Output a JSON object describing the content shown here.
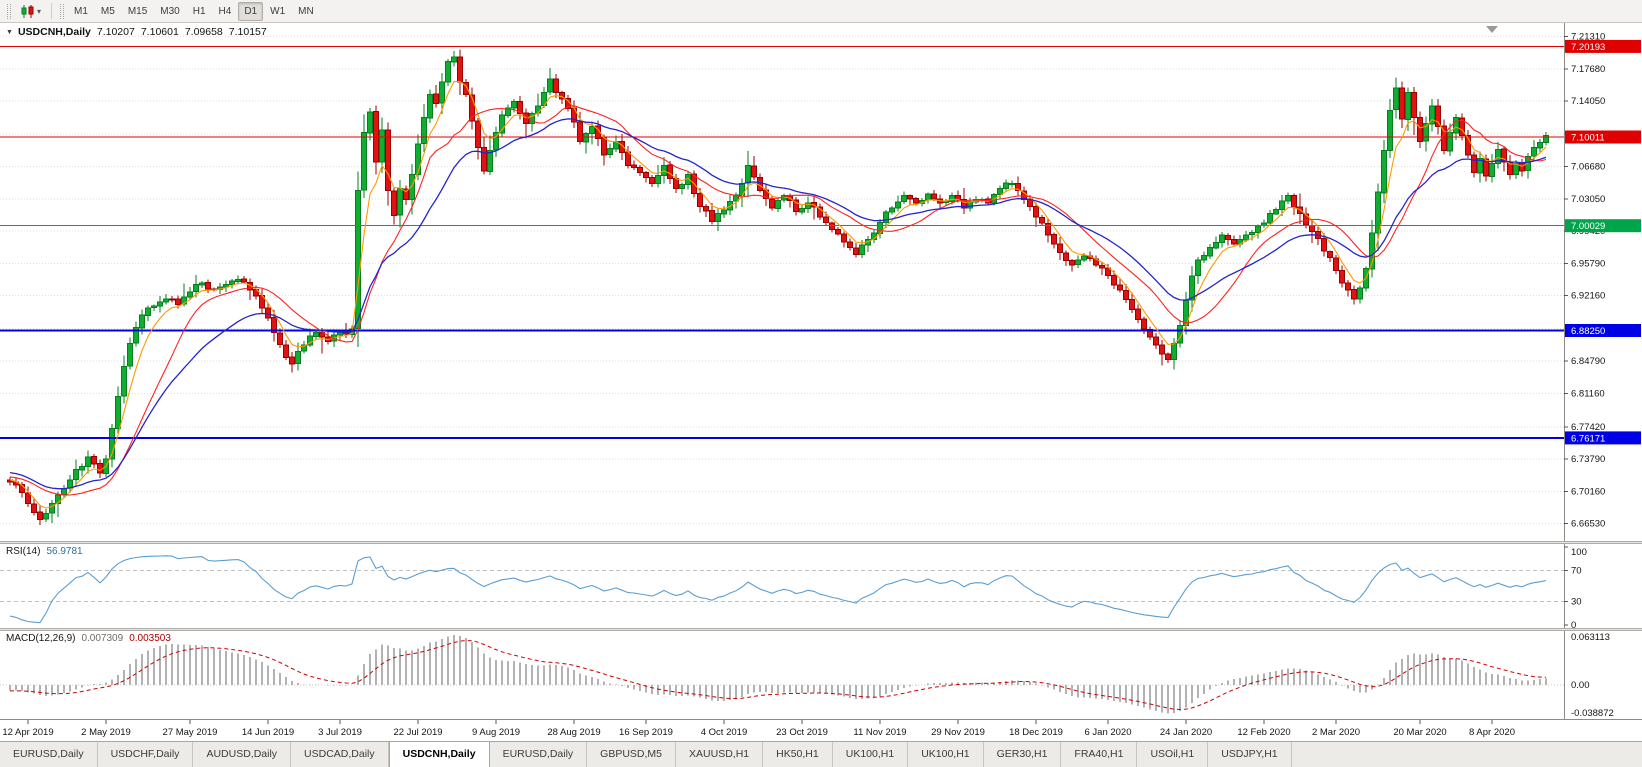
{
  "toolbar": {
    "periods": [
      "M1",
      "M5",
      "M15",
      "M30",
      "H1",
      "H4",
      "D1",
      "W1",
      "MN"
    ],
    "active_period": "D1"
  },
  "chart": {
    "title": {
      "symbol": "USDCNH,Daily",
      "open": "7.10207",
      "high": "7.10601",
      "low": "7.09658",
      "close": "7.10157"
    },
    "colors": {
      "up_stroke": "#067f1e",
      "up_fill": "#0fae33",
      "down_stroke": "#9b0000",
      "down_fill": "#e31212",
      "ma_fast": "#ff9900",
      "ma_mid": "#ff2222",
      "ma_slow": "#2525cc",
      "grid": "#dedede",
      "axis_text": "#141414"
    }
  },
  "chart_data": {
    "type": "candlestick",
    "symbol": "USDCNH",
    "timeframe": "Daily",
    "price_range": {
      "min": 6.648,
      "max": 7.226
    },
    "y_ticks": [
      {
        "v": 7.2131,
        "t": "7.21310"
      },
      {
        "v": 7.1768,
        "t": "7.17680"
      },
      {
        "v": 7.1405,
        "t": "7.14050"
      },
      {
        "v": 7.0668,
        "t": "7.06680"
      },
      {
        "v": 7.0305,
        "t": "7.03050"
      },
      {
        "v": 6.9942,
        "t": "6.99420"
      },
      {
        "v": 6.9579,
        "t": "6.95790"
      },
      {
        "v": 6.9216,
        "t": "6.92160"
      },
      {
        "v": 6.8479,
        "t": "6.84790"
      },
      {
        "v": 6.8116,
        "t": "6.81160"
      },
      {
        "v": 6.7742,
        "t": "6.77420"
      },
      {
        "v": 6.7379,
        "t": "6.73790"
      },
      {
        "v": 6.7016,
        "t": "6.70160"
      },
      {
        "v": 6.6653,
        "t": "6.66530"
      }
    ],
    "y_grid_extra": [
      7.10365,
      6.88475
    ],
    "x_ticks": [
      {
        "i": 3,
        "label": "12 Apr 2019"
      },
      {
        "i": 16,
        "label": "2 May 2019"
      },
      {
        "i": 30,
        "label": "27 May 2019"
      },
      {
        "i": 43,
        "label": "14 Jun 2019"
      },
      {
        "i": 55,
        "label": "3 Jul 2019"
      },
      {
        "i": 68,
        "label": "22 Jul 2019"
      },
      {
        "i": 81,
        "label": "9 Aug 2019"
      },
      {
        "i": 94,
        "label": "28 Aug 2019"
      },
      {
        "i": 106,
        "label": "16 Sep 2019"
      },
      {
        "i": 119,
        "label": "4 Oct 2019"
      },
      {
        "i": 132,
        "label": "23 Oct 2019"
      },
      {
        "i": 145,
        "label": "11 Nov 2019"
      },
      {
        "i": 158,
        "label": "29 Nov 2019"
      },
      {
        "i": 171,
        "label": "18 Dec 2019"
      },
      {
        "i": 183,
        "label": "6 Jan 2020"
      },
      {
        "i": 196,
        "label": "24 Jan 2020"
      },
      {
        "i": 209,
        "label": "12 Feb 2020"
      },
      {
        "i": 221,
        "label": "2 Mar 2020"
      },
      {
        "i": 235,
        "label": "20 Mar 2020"
      },
      {
        "i": 247,
        "label": "8 Apr 2020"
      }
    ],
    "levels": [
      {
        "price": 7.20193,
        "label": "7.20193",
        "color": "#e00000",
        "width": 1
      },
      {
        "price": 7.10011,
        "label": "7.10011",
        "color": "#e00000",
        "width": 1
      },
      {
        "price": 7.00029,
        "label": "7.00029",
        "color": "#00a44a",
        "width": 1
      },
      {
        "price": 6.8825,
        "label": "6.88250",
        "color": "#0000e6",
        "width": 2
      },
      {
        "price": 6.76171,
        "label": "6.76171",
        "color": "#0000e6",
        "width": 2
      }
    ],
    "moving_averages": [
      {
        "type": "EMA",
        "period": 5,
        "color": "#ff9900"
      },
      {
        "type": "SMA",
        "period": 13,
        "color": "#ff2222"
      },
      {
        "type": "EMA",
        "period": 22,
        "color": "#2525cc"
      }
    ],
    "candles": {
      "bars": 257,
      "prehistory_anchors": [
        [
          -60,
          6.795
        ],
        [
          -48,
          6.775
        ],
        [
          -36,
          6.752
        ],
        [
          -24,
          6.735
        ],
        [
          -12,
          6.722
        ],
        [
          -1,
          6.715
        ]
      ],
      "close_anchors": [
        [
          0,
          6.712
        ],
        [
          2,
          6.7
        ],
        [
          4,
          6.678
        ],
        [
          5,
          6.67
        ],
        [
          7,
          6.688
        ],
        [
          9,
          6.705
        ],
        [
          11,
          6.726
        ],
        [
          13,
          6.74
        ],
        [
          15,
          6.722
        ],
        [
          16,
          6.738
        ],
        [
          17,
          6.772
        ],
        [
          18,
          6.808
        ],
        [
          19,
          6.842
        ],
        [
          20,
          6.868
        ],
        [
          21,
          6.886
        ],
        [
          22,
          6.9
        ],
        [
          24,
          6.91
        ],
        [
          26,
          6.918
        ],
        [
          28,
          6.912
        ],
        [
          30,
          6.926
        ],
        [
          32,
          6.936
        ],
        [
          34,
          6.928
        ],
        [
          36,
          6.934
        ],
        [
          38,
          6.94
        ],
        [
          40,
          6.928
        ],
        [
          42,
          6.908
        ],
        [
          44,
          6.88
        ],
        [
          46,
          6.852
        ],
        [
          47,
          6.845
        ],
        [
          49,
          6.866
        ],
        [
          51,
          6.88
        ],
        [
          53,
          6.87
        ],
        [
          55,
          6.88
        ],
        [
          57,
          6.884
        ],
        [
          58,
          7.04
        ],
        [
          59,
          7.105
        ],
        [
          60,
          7.128
        ],
        [
          61,
          7.072
        ],
        [
          62,
          7.108
        ],
        [
          63,
          7.04
        ],
        [
          64,
          7.012
        ],
        [
          65,
          7.042
        ],
        [
          66,
          7.03
        ],
        [
          67,
          7.058
        ],
        [
          68,
          7.092
        ],
        [
          69,
          7.122
        ],
        [
          70,
          7.148
        ],
        [
          71,
          7.138
        ],
        [
          72,
          7.162
        ],
        [
          73,
          7.185
        ],
        [
          74,
          7.19
        ],
        [
          75,
          7.162
        ],
        [
          76,
          7.148
        ],
        [
          77,
          7.118
        ],
        [
          78,
          7.088
        ],
        [
          79,
          7.062
        ],
        [
          80,
          7.085
        ],
        [
          81,
          7.105
        ],
        [
          82,
          7.125
        ],
        [
          84,
          7.14
        ],
        [
          86,
          7.115
        ],
        [
          88,
          7.135
        ],
        [
          90,
          7.165
        ],
        [
          91,
          7.15
        ],
        [
          93,
          7.132
        ],
        [
          95,
          7.095
        ],
        [
          97,
          7.112
        ],
        [
          99,
          7.08
        ],
        [
          101,
          7.095
        ],
        [
          103,
          7.068
        ],
        [
          105,
          7.06
        ],
        [
          107,
          7.048
        ],
        [
          109,
          7.068
        ],
        [
          111,
          7.042
        ],
        [
          113,
          7.058
        ],
        [
          115,
          7.022
        ],
        [
          117,
          7.005
        ],
        [
          119,
          7.018
        ],
        [
          121,
          7.035
        ],
        [
          123,
          7.068
        ],
        [
          125,
          7.04
        ],
        [
          127,
          7.02
        ],
        [
          129,
          7.034
        ],
        [
          131,
          7.016
        ],
        [
          133,
          7.026
        ],
        [
          135,
          7.01
        ],
        [
          137,
          6.996
        ],
        [
          139,
          6.982
        ],
        [
          141,
          6.968
        ],
        [
          143,
          6.985
        ],
        [
          145,
          7.004
        ],
        [
          147,
          7.02
        ],
        [
          149,
          7.034
        ],
        [
          151,
          7.026
        ],
        [
          153,
          7.036
        ],
        [
          155,
          7.026
        ],
        [
          157,
          7.034
        ],
        [
          159,
          7.02
        ],
        [
          161,
          7.03
        ],
        [
          163,
          7.026
        ],
        [
          165,
          7.042
        ],
        [
          167,
          7.048
        ],
        [
          169,
          7.03
        ],
        [
          171,
          7.01
        ],
        [
          173,
          6.99
        ],
        [
          175,
          6.97
        ],
        [
          177,
          6.956
        ],
        [
          179,
          6.966
        ],
        [
          181,
          6.956
        ],
        [
          183,
          6.944
        ],
        [
          185,
          6.928
        ],
        [
          187,
          6.906
        ],
        [
          189,
          6.884
        ],
        [
          191,
          6.866
        ],
        [
          192,
          6.856
        ],
        [
          193,
          6.85
        ],
        [
          194,
          6.868
        ],
        [
          195,
          6.888
        ],
        [
          196,
          6.916
        ],
        [
          197,
          6.944
        ],
        [
          198,
          6.962
        ],
        [
          200,
          6.976
        ],
        [
          202,
          6.99
        ],
        [
          204,
          6.98
        ],
        [
          206,
          6.99
        ],
        [
          208,
          7.0
        ],
        [
          210,
          7.014
        ],
        [
          212,
          7.028
        ],
        [
          213,
          7.034
        ],
        [
          215,
          7.014
        ],
        [
          217,
          6.994
        ],
        [
          219,
          6.972
        ],
        [
          221,
          6.95
        ],
        [
          223,
          6.928
        ],
        [
          224,
          6.918
        ],
        [
          225,
          6.93
        ],
        [
          226,
          6.952
        ],
        [
          227,
          6.992
        ],
        [
          228,
          7.038
        ],
        [
          229,
          7.085
        ],
        [
          230,
          7.13
        ],
        [
          231,
          7.155
        ],
        [
          232,
          7.12
        ],
        [
          233,
          7.15
        ],
        [
          234,
          7.122
        ],
        [
          235,
          7.095
        ],
        [
          236,
          7.115
        ],
        [
          237,
          7.135
        ],
        [
          238,
          7.112
        ],
        [
          239,
          7.085
        ],
        [
          240,
          7.105
        ],
        [
          241,
          7.122
        ],
        [
          242,
          7.102
        ],
        [
          243,
          7.08
        ],
        [
          244,
          7.06
        ],
        [
          245,
          7.076
        ],
        [
          246,
          7.056
        ],
        [
          247,
          7.07
        ],
        [
          248,
          7.086
        ],
        [
          249,
          7.072
        ],
        [
          250,
          7.058
        ],
        [
          251,
          7.07
        ],
        [
          252,
          7.062
        ],
        [
          253,
          7.078
        ],
        [
          254,
          7.088
        ],
        [
          255,
          7.094
        ],
        [
          256,
          7.1016
        ]
      ]
    }
  },
  "rsi": {
    "name": "RSI(14)",
    "value": "56.9781",
    "period": 14,
    "color": "#5a9fd4",
    "level_lines": [
      70,
      30
    ],
    "scale_labels": [
      {
        "v": 100,
        "t": "100"
      },
      {
        "v": 70,
        "t": "70"
      },
      {
        "v": 30,
        "t": "30"
      },
      {
        "v": 0,
        "t": "0"
      }
    ]
  },
  "macd": {
    "name": "MACD(12,26,9)",
    "value_main": "0.007309",
    "value_signal": "0.003503",
    "fast": 12,
    "slow": 26,
    "signal": 9,
    "color_main": "#b2b2b2",
    "color_signal": "#cc0000",
    "scale_top": "0.063113",
    "scale_zero": "0.00",
    "scale_bottom": "-0.038872",
    "scale_top_v": 0.063113,
    "scale_bottom_v": -0.038872
  },
  "tabs": [
    {
      "label": "EURUSD,Daily",
      "active": false
    },
    {
      "label": "USDCHF,Daily",
      "active": false
    },
    {
      "label": "AUDUSD,Daily",
      "active": false
    },
    {
      "label": "USDCAD,Daily",
      "active": false
    },
    {
      "label": "USDCNH,Daily",
      "active": true
    },
    {
      "label": "EURUSD,Daily",
      "active": false
    },
    {
      "label": "GBPUSD,M5",
      "active": false
    },
    {
      "label": "XAUUSD,H1",
      "active": false
    },
    {
      "label": "HK50,H1",
      "active": false
    },
    {
      "label": "UK100,H1",
      "active": false
    },
    {
      "label": "UK100,H1",
      "active": false
    },
    {
      "label": "GER30,H1",
      "active": false
    },
    {
      "label": "FRA40,H1",
      "active": false
    },
    {
      "label": "USOil,H1",
      "active": false
    },
    {
      "label": "USDJPY,H1",
      "active": false
    }
  ]
}
